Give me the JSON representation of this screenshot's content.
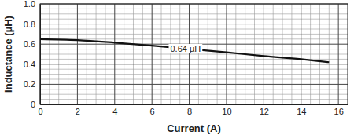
{
  "chart_data": {
    "type": "line",
    "x_label": "Current (A)",
    "y_label": "Inductance (µH)",
    "x": [
      0,
      2,
      4,
      6,
      8,
      10,
      12,
      14,
      15.5
    ],
    "values": [
      0.65,
      0.64,
      0.615,
      0.585,
      0.552,
      0.518,
      0.482,
      0.45,
      0.42
    ],
    "color": "#111111",
    "xlim": [
      0,
      16.5
    ],
    "xticks": [
      0,
      2,
      4,
      6,
      8,
      10,
      12,
      14,
      16
    ],
    "ylim": [
      0,
      1
    ],
    "yticks": [
      0,
      0.2,
      0.4,
      0.6,
      0.8,
      {
        "value": 1,
        "label": "1.0"
      }
    ],
    "grid": true,
    "annotations": [
      {
        "text": "0.64 µH",
        "x": 7.8,
        "y": 0.555
      }
    ]
  }
}
